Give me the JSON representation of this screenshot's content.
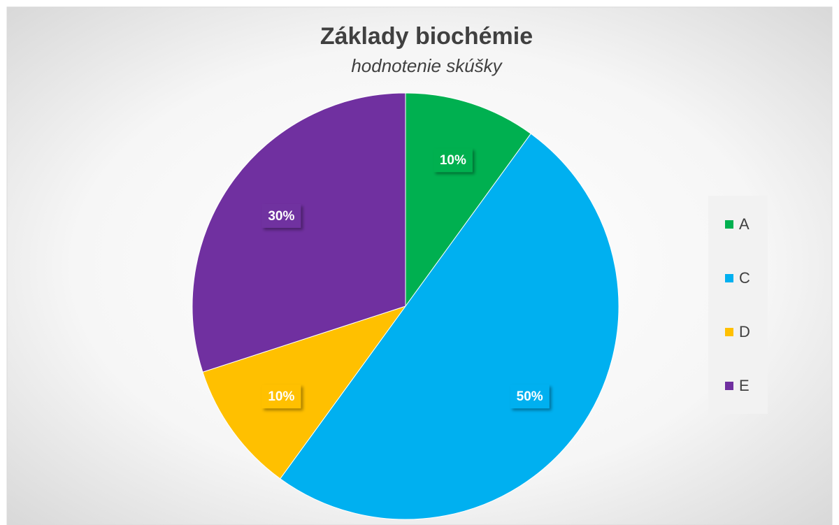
{
  "chart_data": {
    "type": "pie",
    "title": "Základy biochémie",
    "subtitle": "hodnotenie skúšky",
    "categories": [
      "A",
      "C",
      "D",
      "E"
    ],
    "values": [
      10,
      50,
      10,
      30
    ],
    "value_labels": [
      "10%",
      "50%",
      "10%",
      "30%"
    ],
    "colors": [
      "#00b050",
      "#00b0f0",
      "#ffc000",
      "#7030a0"
    ],
    "legend": "right"
  }
}
